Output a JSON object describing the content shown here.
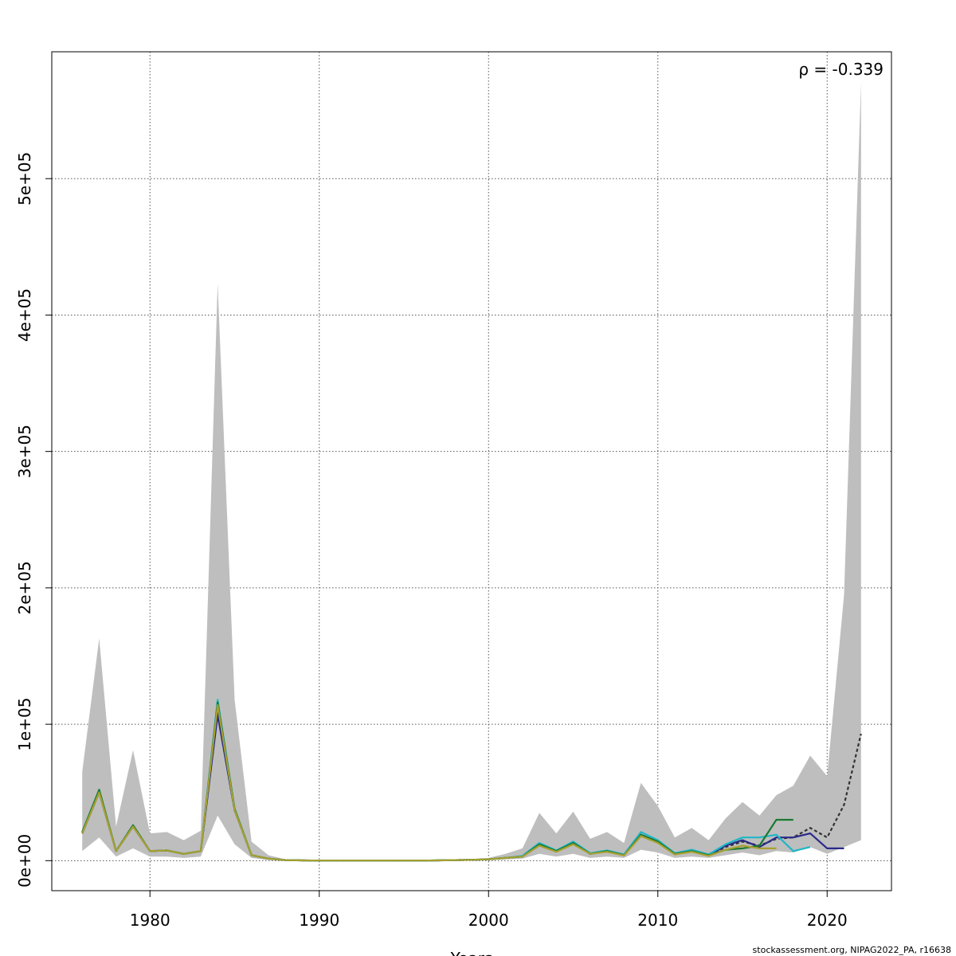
{
  "chart_data": {
    "type": "line",
    "xlabel": "Years",
    "ylabel": "",
    "xlim": [
      1974.2,
      2023.8
    ],
    "ylim": [
      -22000,
      593000
    ],
    "x_ticks": [
      1980,
      1990,
      2000,
      2010,
      2020
    ],
    "y_ticks": [
      0,
      100000,
      200000,
      300000,
      400000,
      500000
    ],
    "x_tick_labels": [
      "1980",
      "1990",
      "2000",
      "2010",
      "2020"
    ],
    "y_tick_labels": [
      "0e+00",
      "1e+05",
      "2e+05",
      "3e+05",
      "4e+05",
      "5e+05"
    ],
    "grid": true,
    "annotation": "ρ = -0.339",
    "credit": "stockassessment.org, NIPAG2022_PA, r16638",
    "confidence_band": {
      "x": [
        1976,
        1977,
        1978,
        1979,
        1980,
        1981,
        1982,
        1983,
        1984,
        1985,
        1986,
        1987,
        1988,
        1989,
        1990,
        1991,
        1992,
        1993,
        1994,
        1995,
        1996,
        1997,
        1998,
        1999,
        2000,
        2001,
        2002,
        2003,
        2004,
        2005,
        2006,
        2007,
        2008,
        2009,
        2010,
        2011,
        2012,
        2013,
        2014,
        2015,
        2016,
        2017,
        2018,
        2019,
        2020,
        2021,
        2022
      ],
      "upper": [
        65000,
        163000,
        25000,
        81000,
        20000,
        21000,
        15000,
        22000,
        423000,
        118000,
        14000,
        4000,
        1000,
        500,
        300,
        300,
        300,
        300,
        300,
        300,
        300,
        500,
        800,
        1000,
        2000,
        5000,
        9000,
        35000,
        20000,
        36000,
        16000,
        21000,
        13000,
        57000,
        40000,
        17000,
        24000,
        15000,
        31000,
        43000,
        33000,
        48000,
        55000,
        77000,
        62000,
        195000,
        570000
      ],
      "lower": [
        7000,
        17000,
        3000,
        9000,
        3000,
        3000,
        2000,
        3000,
        33000,
        12000,
        2000,
        500,
        100,
        50,
        50,
        50,
        50,
        50,
        50,
        50,
        50,
        100,
        200,
        300,
        500,
        1000,
        1500,
        5000,
        3000,
        5000,
        2000,
        3000,
        2000,
        8000,
        6000,
        2000,
        3000,
        2000,
        4000,
        6000,
        4000,
        7000,
        6000,
        10000,
        5000,
        10000,
        15000
      ]
    },
    "series": [
      {
        "color": "#333333",
        "dashed": true,
        "x": [
          1976,
          1977,
          1978,
          1979,
          1980,
          1981,
          1982,
          1983,
          1984,
          1985,
          1986,
          1987,
          1988,
          1989,
          1990,
          1991,
          1992,
          1993,
          1994,
          1995,
          1996,
          1997,
          1998,
          1999,
          2000,
          2001,
          2002,
          2003,
          2004,
          2005,
          2006,
          2007,
          2008,
          2009,
          2010,
          2011,
          2012,
          2013,
          2014,
          2015,
          2016,
          2017,
          2018,
          2019,
          2020,
          2021,
          2022
        ],
        "y": [
          20000,
          51000,
          7000,
          26000,
          7000,
          7500,
          5000,
          7000,
          108000,
          37000,
          4000,
          1500,
          400,
          200,
          100,
          100,
          100,
          100,
          100,
          100,
          100,
          200,
          400,
          600,
          1000,
          2000,
          3000,
          12000,
          7000,
          13000,
          5000,
          7000,
          4000,
          19000,
          14000,
          5000,
          7000,
          4000,
          10000,
          14000,
          11000,
          16000,
          17000,
          24000,
          17000,
          41000,
          93000
        ]
      },
      {
        "color": "#2a2a8a",
        "dashed": false,
        "x": [
          1976,
          1977,
          1978,
          1979,
          1980,
          1981,
          1982,
          1983,
          1984,
          1985,
          1986,
          1987,
          1988,
          1989,
          1990,
          1991,
          1992,
          1993,
          1994,
          1995,
          1996,
          1997,
          1998,
          1999,
          2000,
          2001,
          2002,
          2003,
          2004,
          2005,
          2006,
          2007,
          2008,
          2009,
          2010,
          2011,
          2012,
          2013,
          2014,
          2015,
          2016,
          2017,
          2018,
          2019,
          2020,
          2021
        ],
        "y": [
          20000,
          50000,
          7000,
          25000,
          7000,
          7500,
          5000,
          7000,
          107000,
          37000,
          4000,
          1500,
          400,
          200,
          100,
          100,
          100,
          100,
          100,
          100,
          100,
          200,
          400,
          600,
          1000,
          2000,
          3000,
          12000,
          7000,
          13000,
          5000,
          7000,
          4000,
          19000,
          14000,
          5000,
          7000,
          4000,
          11000,
          15000,
          10000,
          17000,
          17000,
          20000,
          9000,
          9000
        ]
      },
      {
        "color": "#1fb7c7",
        "dashed": false,
        "x": [
          1976,
          1977,
          1978,
          1979,
          1980,
          1981,
          1982,
          1983,
          1984,
          1985,
          1986,
          1987,
          1988,
          1989,
          1990,
          1991,
          1992,
          1993,
          1994,
          1995,
          1996,
          1997,
          1998,
          1999,
          2000,
          2001,
          2002,
          2003,
          2004,
          2005,
          2006,
          2007,
          2008,
          2009,
          2010,
          2011,
          2012,
          2013,
          2014,
          2015,
          2016,
          2017,
          2018,
          2019
        ],
        "y": [
          21000,
          52000,
          7000,
          26000,
          7000,
          7500,
          5000,
          7000,
          118000,
          38000,
          4000,
          1500,
          400,
          200,
          100,
          100,
          100,
          100,
          100,
          100,
          100,
          200,
          400,
          600,
          1000,
          2000,
          3500,
          13000,
          7500,
          14000,
          5500,
          7500,
          4500,
          21000,
          15000,
          5500,
          8000,
          4500,
          12000,
          17000,
          17000,
          19000,
          7000,
          10000
        ]
      },
      {
        "color": "#1a7a30",
        "dashed": false,
        "x": [
          1976,
          1977,
          1978,
          1979,
          1980,
          1981,
          1982,
          1983,
          1984,
          1985,
          1986,
          1987,
          1988,
          1989,
          1990,
          1991,
          1992,
          1993,
          1994,
          1995,
          1996,
          1997,
          1998,
          1999,
          2000,
          2001,
          2002,
          2003,
          2004,
          2005,
          2006,
          2007,
          2008,
          2009,
          2010,
          2011,
          2012,
          2013,
          2014,
          2015,
          2016,
          2017,
          2018
        ],
        "y": [
          21000,
          52000,
          7000,
          26000,
          7000,
          7500,
          5000,
          7000,
          116000,
          38000,
          4000,
          1500,
          400,
          200,
          100,
          100,
          100,
          100,
          100,
          100,
          100,
          200,
          400,
          600,
          1000,
          2000,
          3000,
          12000,
          7000,
          13000,
          5000,
          7000,
          4000,
          19000,
          14000,
          5000,
          7000,
          4000,
          8000,
          9000,
          11000,
          30000,
          30000
        ]
      },
      {
        "color": "#a8a030",
        "dashed": false,
        "x": [
          1976,
          1977,
          1978,
          1979,
          1980,
          1981,
          1982,
          1983,
          1984,
          1985,
          1986,
          1987,
          1988,
          1989,
          1990,
          1991,
          1992,
          1993,
          1994,
          1995,
          1996,
          1997,
          1998,
          1999,
          2000,
          2001,
          2002,
          2003,
          2004,
          2005,
          2006,
          2007,
          2008,
          2009,
          2010,
          2011,
          2012,
          2013,
          2014,
          2015,
          2016,
          2017
        ],
        "y": [
          20000,
          50000,
          7000,
          25000,
          7000,
          7500,
          5000,
          7000,
          114000,
          37000,
          4000,
          1500,
          400,
          200,
          100,
          100,
          100,
          100,
          100,
          100,
          100,
          200,
          400,
          600,
          1000,
          2000,
          3000,
          11000,
          6500,
          12000,
          5000,
          6500,
          3800,
          18000,
          13000,
          4500,
          6500,
          3500,
          8000,
          11000,
          9000,
          9000
        ]
      }
    ],
    "colors": {
      "band": "#bebebe",
      "grid": "#555555",
      "axis": "#000000"
    }
  }
}
